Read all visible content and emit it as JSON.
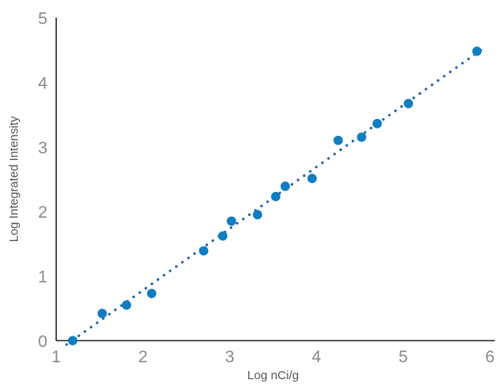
{
  "chart_data": {
    "type": "scatter",
    "title": "",
    "xlabel": "Log nCi/g",
    "ylabel": "Log Integrated Intensity",
    "xlim": [
      1,
      6
    ],
    "ylim": [
      0,
      5
    ],
    "xticks": [
      "1",
      "2",
      "3",
      "4",
      "5",
      "6"
    ],
    "yticks": [
      "0",
      "1",
      "2",
      "3",
      "4",
      "5"
    ],
    "grid": false,
    "legend": "none",
    "series": [
      {
        "color": "#0f7dc2",
        "x": [
          1.19,
          1.53,
          1.81,
          2.1,
          2.7,
          2.92,
          3.02,
          3.32,
          3.53,
          3.64,
          3.95,
          4.25,
          4.52,
          4.7,
          5.06,
          5.85
        ],
        "y": [
          0.0,
          0.42,
          0.55,
          0.73,
          1.39,
          1.62,
          1.85,
          1.95,
          2.23,
          2.39,
          2.51,
          3.1,
          3.15,
          3.36,
          3.67,
          4.48
        ]
      }
    ],
    "trendline": {
      "style": "dotted",
      "color": "#1f5fa3",
      "x": [
        1.12,
        5.95
      ],
      "y": [
        -0.06,
        4.55
      ]
    }
  }
}
